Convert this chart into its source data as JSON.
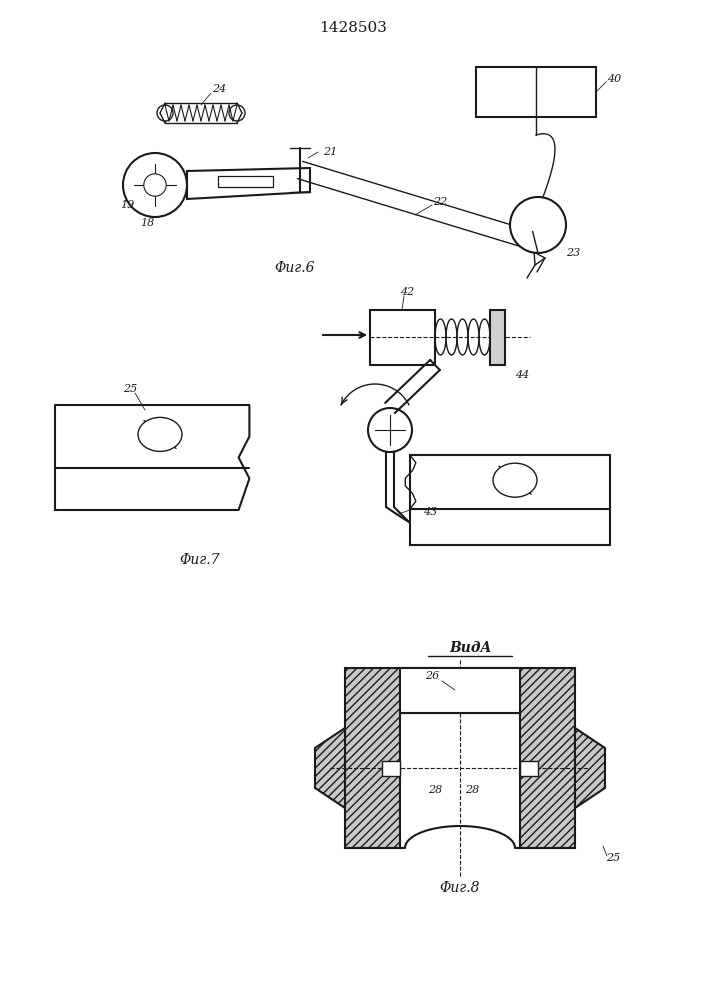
{
  "title": "1428503",
  "bg_color": "#ffffff",
  "line_color": "#1a1a1a",
  "fig6_caption": "Φиг.6",
  "fig7_caption": "Φиг.7",
  "fig8_caption": "Φиг.8",
  "vida_caption": "ВидA"
}
